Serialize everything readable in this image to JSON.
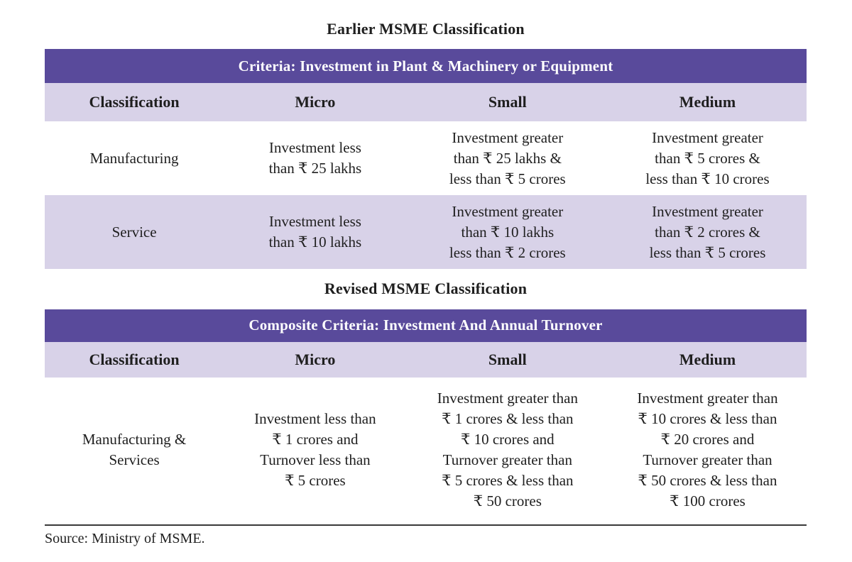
{
  "colors": {
    "banner": "#594a9b",
    "rowAlt": "#d8d2e8",
    "text": "#1f1f1f"
  },
  "earlier": {
    "title": "Earlier MSME Classification",
    "banner": "Criteria: Investment in Plant & Machinery or Equipment",
    "headers": [
      "Classification",
      "Micro",
      "Small",
      "Medium"
    ],
    "rows": [
      [
        "Manufacturing",
        "Investment less\nthan ₹ 25 lakhs",
        "Investment greater\nthan ₹ 25 lakhs &\nless than ₹ 5 crores",
        "Investment greater\nthan ₹ 5 crores &\nless than ₹ 10 crores"
      ],
      [
        "Service",
        "Investment less\nthan ₹ 10 lakhs",
        "Investment greater\nthan ₹ 10 lakhs\nless than ₹ 2 crores",
        "Investment greater\nthan ₹ 2 crores &\nless than ₹ 5 crores"
      ]
    ]
  },
  "revised": {
    "title": "Revised MSME Classification",
    "banner": "Composite Criteria:  Investment And Annual Turnover",
    "headers": [
      "Classification",
      "Micro",
      "Small",
      "Medium"
    ],
    "rows": [
      [
        "Manufacturing &\nServices",
        "Investment less than\n₹ 1 crores and\nTurnover less than\n₹ 5 crores",
        "Investment greater than\n₹ 1 crores & less than\n₹ 10 crores and\nTurnover greater than\n₹ 5 crores & less than\n₹ 50 crores",
        "Investment greater than\n₹ 10 crores & less than\n₹ 20 crores and\nTurnover greater than\n₹ 50 crores & less than\n₹ 100 crores"
      ]
    ]
  },
  "footer": {
    "source": "Source: Ministry of MSME."
  }
}
